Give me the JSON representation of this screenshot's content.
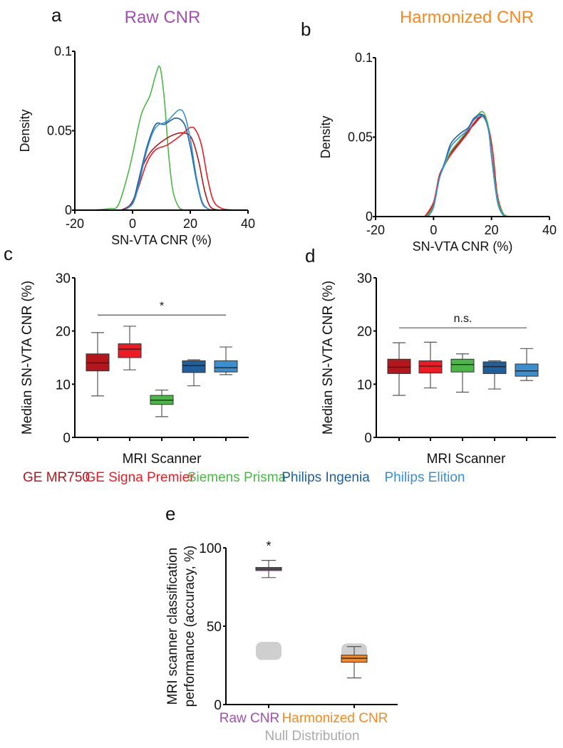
{
  "colors": {
    "GE MR750": "#b5161c",
    "GE Signa Premier": "#ed1c24",
    "Siemens Prisma": "#4bb747",
    "Philips Ingenia": "#1f5f9e",
    "Philips Elition": "#3a8fd0",
    "raw": "#a24fb0",
    "harmonized": "#f7891f",
    "null": "#aaaaaa"
  },
  "scanner_legend": [
    "GE MR750",
    "GE Signa Premier",
    "Siemens Prisma",
    "Philips Ingenia",
    "Philips Elition"
  ],
  "chart_data": [
    {
      "panel": "a",
      "type": "line",
      "title": "Raw CNR",
      "xlabel": "SN-VTA CNR (%)",
      "ylabel": "Density",
      "xlim": [
        -20,
        40
      ],
      "ylim": [
        0,
        0.1
      ],
      "xticks": [
        "-20",
        "0",
        "20",
        "40"
      ],
      "yticks": [
        "0",
        "0.05",
        "0.1"
      ],
      "series": [
        {
          "scanner": "Siemens Prisma",
          "x": [
            -14,
            -8,
            -5,
            -2,
            0,
            3,
            6,
            8,
            9.5,
            11,
            12.5,
            14,
            16,
            18
          ],
          "y": [
            0,
            0.001,
            0.003,
            0.02,
            0.035,
            0.06,
            0.072,
            0.085,
            0.09,
            0.07,
            0.035,
            0.012,
            0.002,
            0
          ]
        },
        {
          "scanner": "GE MR750",
          "x": [
            -4,
            -1,
            1,
            3,
            6,
            10,
            15,
            19,
            21,
            23,
            25,
            27,
            30
          ],
          "y": [
            0,
            0.003,
            0.01,
            0.025,
            0.036,
            0.043,
            0.048,
            0.048,
            0.043,
            0.03,
            0.012,
            0.002,
            0
          ]
        },
        {
          "scanner": "GE Signa Premier",
          "x": [
            -3,
            0,
            2,
            5,
            8,
            12,
            16,
            20,
            22,
            24,
            26,
            28,
            31,
            36
          ],
          "y": [
            0,
            0.004,
            0.014,
            0.03,
            0.038,
            0.041,
            0.046,
            0.052,
            0.05,
            0.04,
            0.02,
            0.006,
            0.001,
            0
          ]
        },
        {
          "scanner": "Philips Ingenia",
          "x": [
            -3,
            0,
            2,
            5,
            8,
            11,
            15,
            18,
            20,
            22,
            24,
            26,
            28
          ],
          "y": [
            0,
            0.005,
            0.018,
            0.04,
            0.054,
            0.054,
            0.058,
            0.054,
            0.04,
            0.02,
            0.005,
            0.001,
            0
          ]
        },
        {
          "scanner": "Philips Elition",
          "x": [
            -3,
            0,
            2,
            5,
            8,
            12,
            16,
            18,
            20,
            22,
            24,
            26,
            28
          ],
          "y": [
            0,
            0.004,
            0.015,
            0.038,
            0.052,
            0.056,
            0.063,
            0.06,
            0.045,
            0.022,
            0.006,
            0.001,
            0
          ]
        }
      ]
    },
    {
      "panel": "b",
      "type": "line",
      "title": "Harmonized CNR",
      "xlabel": "SN-VTA CNR (%)",
      "ylabel": "Density",
      "xlim": [
        -20,
        40
      ],
      "ylim": [
        0,
        0.1
      ],
      "xticks": [
        "-20",
        "0",
        "20",
        "40"
      ],
      "yticks": [
        "0",
        "0.05",
        "0.1"
      ],
      "series": [
        {
          "scanner": "GE MR750",
          "x": [
            -3,
            0,
            2,
            4,
            6,
            9,
            12,
            14,
            17,
            19,
            20,
            22,
            24,
            26
          ],
          "y": [
            0,
            0.008,
            0.025,
            0.033,
            0.04,
            0.047,
            0.054,
            0.058,
            0.063,
            0.055,
            0.04,
            0.012,
            0.002,
            0
          ]
        },
        {
          "scanner": "GE Signa Premier",
          "x": [
            -3,
            0,
            2,
            4,
            6,
            9,
            12,
            14,
            17,
            19,
            20.5,
            22,
            24,
            26
          ],
          "y": [
            0,
            0.009,
            0.026,
            0.033,
            0.039,
            0.046,
            0.053,
            0.059,
            0.064,
            0.056,
            0.04,
            0.014,
            0.002,
            0
          ]
        },
        {
          "scanner": "Siemens Prisma",
          "x": [
            -2.5,
            0,
            2,
            4,
            6,
            9,
            12,
            14,
            17,
            19,
            20,
            22,
            24,
            26
          ],
          "y": [
            0,
            0.007,
            0.024,
            0.033,
            0.041,
            0.048,
            0.055,
            0.061,
            0.066,
            0.056,
            0.04,
            0.012,
            0.002,
            0
          ]
        },
        {
          "scanner": "Philips Ingenia",
          "x": [
            -2,
            0,
            2,
            4,
            6,
            9,
            12,
            14,
            17,
            19,
            20,
            22,
            24,
            26
          ],
          "y": [
            0,
            0.006,
            0.024,
            0.035,
            0.046,
            0.052,
            0.056,
            0.062,
            0.064,
            0.054,
            0.038,
            0.01,
            0.001,
            0
          ]
        },
        {
          "scanner": "Philips Elition",
          "x": [
            -2,
            0,
            2,
            4,
            6,
            9,
            12,
            14,
            17,
            19,
            20,
            22,
            24,
            26
          ],
          "y": [
            0,
            0.006,
            0.024,
            0.034,
            0.044,
            0.05,
            0.055,
            0.061,
            0.063,
            0.054,
            0.038,
            0.01,
            0.001,
            0
          ]
        }
      ]
    },
    {
      "panel": "c",
      "type": "box",
      "xlabel": "MRI Scanner",
      "ylabel": "Median SN-VTA CNR (%)",
      "ylim": [
        0,
        30
      ],
      "yticks": [
        "0",
        "10",
        "20",
        "30"
      ],
      "categories": [
        "GE MR750",
        "GE Signa Premier",
        "Siemens Prisma",
        "Philips Ingenia",
        "Philips Elition"
      ],
      "boxes": [
        {
          "min": 7.8,
          "q1": 12.5,
          "median": 14.0,
          "q3": 15.7,
          "max": 19.7
        },
        {
          "min": 12.7,
          "q1": 15.0,
          "median": 16.6,
          "q3": 17.6,
          "max": 20.9
        },
        {
          "min": 3.9,
          "q1": 6.2,
          "median": 7.0,
          "q3": 7.9,
          "max": 8.9
        },
        {
          "min": 9.7,
          "q1": 12.2,
          "median": 13.5,
          "q3": 14.4,
          "max": 14.6
        },
        {
          "min": 11.8,
          "q1": 12.3,
          "median": 13.1,
          "q3": 14.4,
          "max": 17.0
        }
      ],
      "significance": {
        "label": "*",
        "y": 23
      }
    },
    {
      "panel": "d",
      "type": "box",
      "xlabel": "MRI Scanner",
      "ylabel": "Median SN-VTA CNR (%)",
      "ylim": [
        0,
        30
      ],
      "yticks": [
        "0",
        "10",
        "20",
        "30"
      ],
      "categories": [
        "GE MR750",
        "GE Signa Premier",
        "Siemens Prisma",
        "Philips Ingenia",
        "Philips Elition"
      ],
      "boxes": [
        {
          "min": 7.9,
          "q1": 12.0,
          "median": 13.2,
          "q3": 14.7,
          "max": 17.8
        },
        {
          "min": 9.3,
          "q1": 12.1,
          "median": 13.4,
          "q3": 14.4,
          "max": 17.9
        },
        {
          "min": 8.5,
          "q1": 12.3,
          "median": 13.7,
          "q3": 14.7,
          "max": 15.7
        },
        {
          "min": 9.1,
          "q1": 12.0,
          "median": 13.3,
          "q3": 14.2,
          "max": 14.4
        },
        {
          "min": 10.7,
          "q1": 11.5,
          "median": 12.5,
          "q3": 13.8,
          "max": 16.7
        }
      ],
      "significance": {
        "label": "n.s.",
        "y": 20.6
      }
    },
    {
      "panel": "e",
      "type": "box",
      "ylabel": "MRI scanner classification performance (accuracy, %)",
      "ylim": [
        0,
        100
      ],
      "yticks": [
        "0",
        "50",
        "100"
      ],
      "categories": [
        "Raw CNR",
        "Harmonized CNR"
      ],
      "null_label": "Null Distribution",
      "boxes": [
        {
          "min": 81,
          "q1": 85.5,
          "median": 86.5,
          "q3": 87.5,
          "max": 92,
          "null_range": [
            28.5,
            40
          ],
          "significance": "*"
        },
        {
          "min": 17,
          "q1": 27,
          "median": 29.5,
          "q3": 31.5,
          "max": 37,
          "null_range": [
            28,
            39
          ]
        }
      ]
    }
  ]
}
